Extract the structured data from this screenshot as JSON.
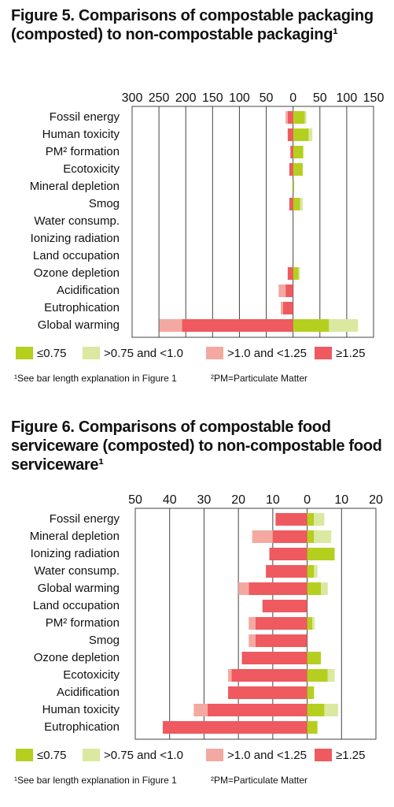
{
  "chart_data": [
    {
      "type": "bar",
      "title": "Figure 5. Comparisons of compostable packaging (composted) to non-compostable packaging¹",
      "categories": [
        "Fossil energy",
        "Human toxicity",
        "PM² formation",
        "Ecotoxicity",
        "Mineral depletion",
        "Smog",
        "Water consump.",
        "Ionizing radiation",
        "Land occupation",
        "Ozone depletion",
        "Acidification",
        "Eutrophication",
        "Global warming"
      ],
      "series": [
        {
          "name": "≤0.75",
          "color": "#b5cf1f",
          "values": [
            22,
            29,
            19,
            18,
            2,
            13,
            0,
            0,
            0,
            10,
            0,
            0,
            67
          ]
        },
        {
          "name": ">0.75 and <1.0",
          "color": "#dbe8a0",
          "values": [
            3,
            7,
            0,
            0,
            0,
            5,
            0,
            0,
            0,
            3,
            0,
            0,
            54
          ]
        },
        {
          "name": ">1.0 and <1.25",
          "color": "#f3a9a1",
          "values": [
            -4,
            0,
            0,
            0,
            0,
            0,
            0,
            0,
            0,
            0,
            -13,
            -4,
            -42
          ]
        },
        {
          "name": "≥1.25",
          "color": "#ee5a5f",
          "values": [
            -10,
            -10,
            -5,
            -7,
            0,
            -7,
            0,
            0,
            0,
            -10,
            -14,
            -19,
            -207
          ]
        }
      ],
      "xlim": [
        -300,
        150
      ],
      "xticks": [
        {
          "value": -300,
          "label": "300"
        },
        {
          "value": -250,
          "label": "250"
        },
        {
          "value": -200,
          "label": "200"
        },
        {
          "value": -150,
          "label": "150"
        },
        {
          "value": -100,
          "label": "100"
        },
        {
          "value": -50,
          "label": "50"
        },
        0,
        50,
        100,
        150
      ],
      "grid": true,
      "footnotes": [
        "¹See bar length explanation in Figure 1",
        "²PM=Particulate Matter"
      ]
    },
    {
      "type": "bar",
      "title": "Figure 6. Comparisons of compostable food serviceware (composted) to non-compostable food serviceware¹",
      "categories": [
        "Fossil energy",
        "Mineral depletion",
        "Ionizing radiation",
        "Water consump.",
        "Global warming",
        "Land occupation",
        "PM² formation",
        "Smog",
        "Ozone depletion",
        "Ecotoxicity",
        "Acidification",
        "Human toxicity",
        "Eutrophication"
      ],
      "series": [
        {
          "name": "≤0.75",
          "color": "#b5cf1f",
          "values": [
            2,
            2,
            8,
            2,
            4,
            0,
            1.5,
            0,
            4,
            6,
            2,
            5,
            3
          ]
        },
        {
          "name": ">0.75 and <1.0",
          "color": "#dbe8a0",
          "values": [
            3,
            5,
            0,
            1,
            2,
            0,
            0.7,
            0,
            0,
            2,
            0,
            4,
            0
          ]
        },
        {
          "name": ">1.0 and <1.25",
          "color": "#f3a9a1",
          "values": [
            0,
            -6,
            0,
            0,
            -3,
            0,
            -2,
            -2,
            0,
            -1,
            0,
            -4,
            0
          ]
        },
        {
          "name": "≥1.25",
          "color": "#ee5a5f",
          "values": [
            -9.2,
            -10,
            -11,
            -12,
            -17,
            -13,
            -15,
            -15,
            -19,
            -22,
            -23,
            -29,
            -42
          ]
        }
      ],
      "xlim": [
        -50,
        20
      ],
      "xticks": [
        {
          "value": -50,
          "label": "50"
        },
        {
          "value": -40,
          "label": "40"
        },
        {
          "value": -30,
          "label": "30"
        },
        {
          "value": -20,
          "label": "20"
        },
        {
          "value": -10,
          "label": "10"
        },
        0,
        10,
        20
      ],
      "grid": true,
      "footnotes": [
        "¹See bar length explanation in Figure 1",
        "²PM=Particulate Matter"
      ]
    }
  ]
}
